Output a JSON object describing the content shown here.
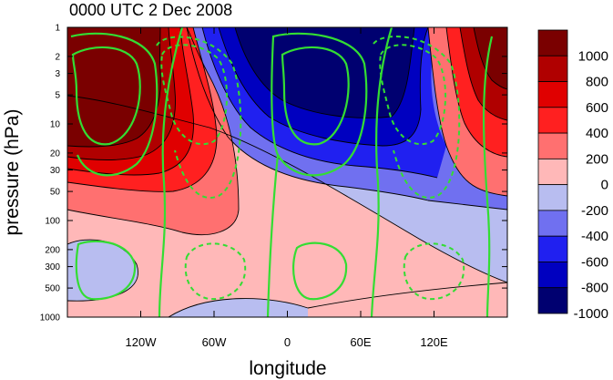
{
  "chart_data": {
    "type": "contour",
    "title": "0000 UTC 2 Dec 2008",
    "xlabel": "longitude",
    "ylabel": "pressure (hPa)",
    "x_tick_labels": [
      "120W",
      "60W",
      "0",
      "60E",
      "120E"
    ],
    "x_ticks_deg": [
      -120,
      -60,
      0,
      60,
      120
    ],
    "xlim_deg": [
      -180,
      180
    ],
    "y_scale": "log",
    "ylim_hpa": [
      1000,
      1
    ],
    "y_ticks": [
      1,
      2,
      3,
      5,
      10,
      20,
      30,
      50,
      100,
      200,
      300,
      500,
      1000
    ],
    "y_tick_labels": [
      "1",
      "2",
      "3",
      "5",
      "10",
      "20",
      "30",
      "50",
      "100",
      "200",
      "300",
      "500",
      "1000"
    ],
    "colorbar": {
      "labels": [
        "1000",
        "800",
        "600",
        "400",
        "200",
        "0",
        "-200",
        "-400",
        "-600",
        "-800",
        "-1000"
      ],
      "levels": [
        1000,
        800,
        600,
        400,
        200,
        0,
        -200,
        -400,
        -600,
        -800,
        -1000
      ],
      "colors": [
        "#7a0000",
        "#b00000",
        "#e00000",
        "#ff2020",
        "#ff7070",
        "#ffb8b8",
        "#b8bdf0",
        "#7070f0",
        "#2020f0",
        "#0000c0",
        "#000070"
      ]
    },
    "overlay_contours": {
      "color": "#33dd33",
      "positive": "solid",
      "negative": "dashed"
    }
  }
}
